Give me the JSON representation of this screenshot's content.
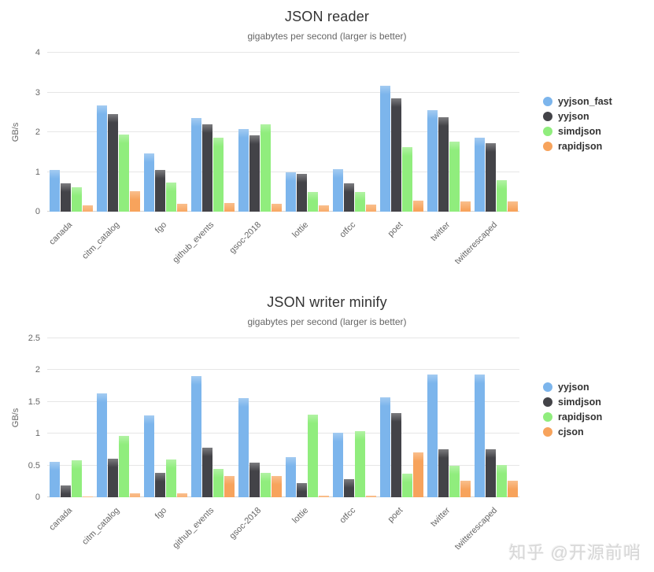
{
  "watermark": {
    "text": "知乎 @开源前哨"
  },
  "colors": {
    "series_blue": "#7cb5ec",
    "series_dark": "#434348",
    "series_green": "#90ed7d",
    "series_orange": "#f7a35c",
    "gridline": "#e6e6e6",
    "title_text": "#333333",
    "subtitle_text": "#666666"
  },
  "chart_data": [
    {
      "type": "bar",
      "title": "JSON reader",
      "subtitle": "gigabytes per second (larger is better)",
      "xlabel": "",
      "ylabel": "GB/s",
      "ylim": [
        0,
        4
      ],
      "yticks": [
        0,
        1,
        2,
        3,
        4
      ],
      "grid": true,
      "legend_position": "right",
      "categories": [
        "canada",
        "citm_catalog",
        "fgo",
        "github_events",
        "gsoc-2018",
        "lottie",
        "otfcc",
        "poet",
        "twitter",
        "twitterescaped"
      ],
      "series": [
        {
          "name": "yyjson_fast",
          "color": "#7cb5ec",
          "values": [
            1.05,
            2.67,
            1.46,
            2.35,
            2.07,
            1.0,
            1.07,
            3.17,
            2.55,
            1.87
          ]
        },
        {
          "name": "yyjson",
          "color": "#434348",
          "values": [
            0.72,
            2.45,
            1.04,
            2.2,
            1.92,
            0.96,
            0.71,
            2.86,
            2.37,
            1.73
          ]
        },
        {
          "name": "simdjson",
          "color": "#90ed7d",
          "values": [
            0.61,
            1.95,
            0.74,
            1.86,
            2.2,
            0.49,
            0.5,
            1.63,
            1.76,
            0.8
          ]
        },
        {
          "name": "rapidjson",
          "color": "#f7a35c",
          "values": [
            0.16,
            0.52,
            0.2,
            0.22,
            0.2,
            0.15,
            0.18,
            0.28,
            0.26,
            0.26
          ]
        }
      ]
    },
    {
      "type": "bar",
      "title": "JSON writer minify",
      "subtitle": "gigabytes per second (larger is better)",
      "xlabel": "",
      "ylabel": "GB/s",
      "ylim": [
        0,
        2.5
      ],
      "yticks": [
        0,
        0.5,
        1,
        1.5,
        2,
        2.5
      ],
      "grid": true,
      "legend_position": "right",
      "categories": [
        "canada",
        "citm_catalog",
        "fgo",
        "github_events",
        "gsoc-2018",
        "lottie",
        "otfcc",
        "poet",
        "twitter",
        "twitterescaped"
      ],
      "series": [
        {
          "name": "yyjson",
          "color": "#7cb5ec",
          "values": [
            0.56,
            1.63,
            1.29,
            1.91,
            1.56,
            0.63,
            1.01,
            1.57,
            1.93,
            1.93
          ]
        },
        {
          "name": "simdjson",
          "color": "#434348",
          "values": [
            0.19,
            0.61,
            0.39,
            0.78,
            0.54,
            0.22,
            0.28,
            1.33,
            0.75,
            0.75
          ]
        },
        {
          "name": "rapidjson",
          "color": "#90ed7d",
          "values": [
            0.58,
            0.97,
            0.59,
            0.45,
            0.38,
            1.3,
            1.04,
            0.37,
            0.5,
            0.51
          ]
        },
        {
          "name": "cjson",
          "color": "#f7a35c",
          "values": [
            0.01,
            0.06,
            0.06,
            0.33,
            0.33,
            0.02,
            0.03,
            0.71,
            0.26,
            0.26
          ]
        }
      ]
    }
  ]
}
